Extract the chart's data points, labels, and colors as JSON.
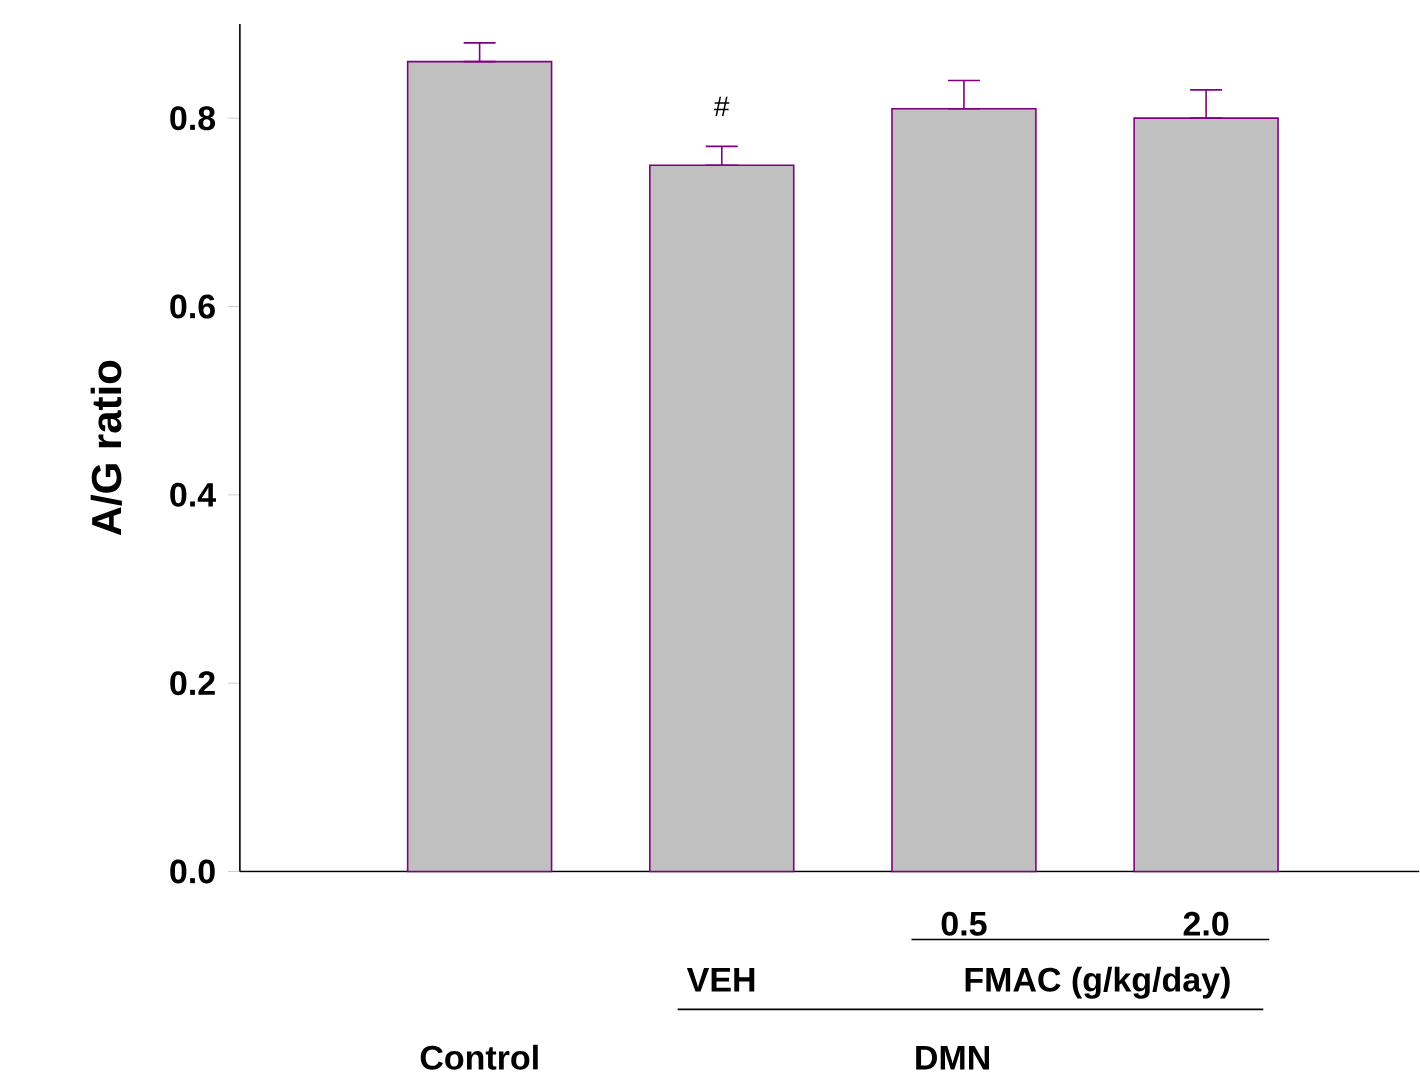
{
  "chart_data": {
    "type": "bar",
    "ylabel": "A/G ratio",
    "categories": [
      null,
      null,
      "0.5",
      "2.0"
    ],
    "values": [
      0.86,
      0.75,
      0.81,
      0.8
    ],
    "colors": [
      "#c0c0c0",
      "#c0c0c0",
      "#c0c0c0",
      "#c0c0c0"
    ],
    "errors": [
      [
        0.86,
        0.88
      ],
      [
        0.75,
        0.77
      ],
      [
        0.81,
        0.84
      ],
      [
        0.8,
        0.83
      ]
    ],
    "ylim": [
      0,
      0.9
    ],
    "yticks": [
      {
        "value": 0,
        "label": "0.0"
      },
      {
        "value": 0.2,
        "label": "0.2"
      },
      {
        "value": 0.4,
        "label": "0.4"
      },
      {
        "value": 0.6,
        "label": "0.6"
      },
      {
        "value": 0.8,
        "label": "0.8"
      }
    ],
    "annotations": [
      "VEH",
      "FMAC (g/kg/day)",
      "Control",
      "DMN",
      "#"
    ]
  }
}
